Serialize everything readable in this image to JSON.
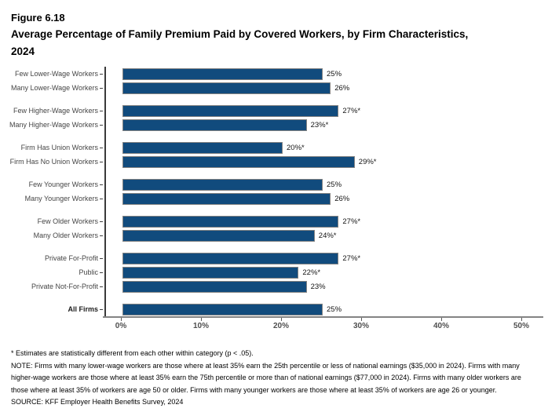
{
  "header": {
    "figure_label": "Figure 6.18",
    "title_line1": "Average Percentage of Family Premium Paid by Covered Workers, by Firm Characteristics,",
    "title_line2": "2024"
  },
  "chart_data": {
    "type": "bar",
    "orientation": "horizontal",
    "title": "Average Percentage of Family Premium Paid by Covered Workers, by Firm Characteristics, 2024",
    "xlabel": "",
    "ylabel": "",
    "value_unit": "percent",
    "xlim": [
      0,
      53
    ],
    "grid": false,
    "legend": "none",
    "bar_color": "#114B7D",
    "bar_border_color": "#828282",
    "x_ticks": [
      {
        "value": 0,
        "label": "0%"
      },
      {
        "value": 10,
        "label": "10%"
      },
      {
        "value": 20,
        "label": "20%"
      },
      {
        "value": 30,
        "label": "30%"
      },
      {
        "value": 40,
        "label": "40%"
      },
      {
        "value": 50,
        "label": "50%"
      }
    ],
    "groups": [
      {
        "rows": [
          {
            "label": "Few Lower-Wage Workers",
            "value": 25,
            "display": "25%"
          },
          {
            "label": "Many Lower-Wage Workers",
            "value": 26,
            "display": "26%"
          }
        ]
      },
      {
        "rows": [
          {
            "label": "Few Higher-Wage Workers",
            "value": 27,
            "display": "27%*"
          },
          {
            "label": "Many Higher-Wage Workers",
            "value": 23,
            "display": "23%*"
          }
        ]
      },
      {
        "rows": [
          {
            "label": "Firm Has Union Workers",
            "value": 20,
            "display": "20%*"
          },
          {
            "label": "Firm Has No Union Workers",
            "value": 29,
            "display": "29%*"
          }
        ]
      },
      {
        "rows": [
          {
            "label": "Few Younger Workers",
            "value": 25,
            "display": "25%"
          },
          {
            "label": "Many Younger Workers",
            "value": 26,
            "display": "26%"
          }
        ]
      },
      {
        "rows": [
          {
            "label": "Few Older Workers",
            "value": 27,
            "display": "27%*"
          },
          {
            "label": "Many Older Workers",
            "value": 24,
            "display": "24%*"
          }
        ]
      },
      {
        "rows": [
          {
            "label": "Private For-Profit",
            "value": 27,
            "display": "27%*"
          },
          {
            "label": "Public",
            "value": 22,
            "display": "22%*"
          },
          {
            "label": "Private Not-For-Profit",
            "value": 23,
            "display": "23%"
          }
        ]
      },
      {
        "rows": [
          {
            "label": "All Firms",
            "value": 25,
            "display": "25%",
            "bold": true
          }
        ]
      }
    ]
  },
  "footnotes": {
    "asterisk_note": "* Estimates are statistically different from each other within category (p < .05).",
    "note": "NOTE: Firms with many lower-wage workers are those where at least 35% earn the 25th percentile or less of national earnings ($35,000 in 2024). Firms with many higher-wage workers are those where at least 35% earn the 75th percentile or more than of national earnings ($77,000 in 2024). Firms with many older workers are those where at least 35% of workers are age 50 or older. Firms with many younger workers are those where at least 35% of workers are age 26 or younger.",
    "source": "SOURCE: KFF Employer Health Benefits Survey, 2024"
  }
}
